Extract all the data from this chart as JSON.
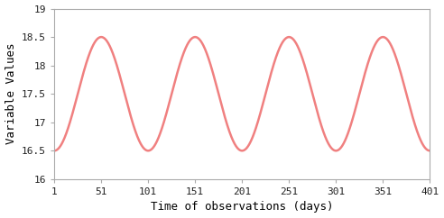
{
  "x_start": 1,
  "x_end": 401,
  "num_points": 2000,
  "amplitude": 1.0,
  "midline": 17.5,
  "num_cycles": 4,
  "line_color": "#f08080",
  "line_width": 1.8,
  "xlabel": "Time of observations (days)",
  "ylabel": "Variable Values",
  "xlim": [
    1,
    401
  ],
  "ylim": [
    16,
    19
  ],
  "xticks": [
    1,
    51,
    101,
    151,
    201,
    251,
    301,
    351,
    401
  ],
  "yticks": [
    16,
    16.5,
    17,
    17.5,
    18,
    18.5,
    19
  ],
  "background_color": "#ffffff",
  "xlabel_fontsize": 9,
  "ylabel_fontsize": 9,
  "tick_fontsize": 8,
  "phase_shift": -1.5707963267948966,
  "spine_color": "#aaaaaa",
  "font_family": "monospace"
}
